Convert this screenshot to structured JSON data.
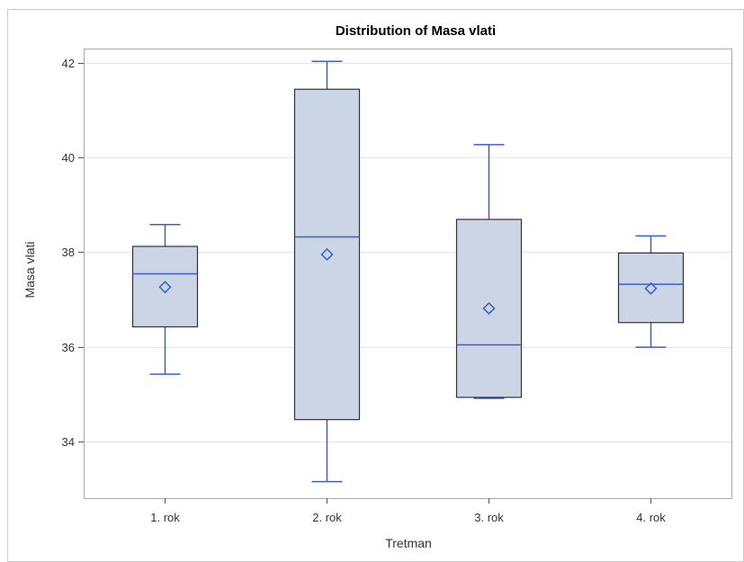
{
  "chart_data": {
    "type": "box",
    "title": "Distribution of Masa vlati",
    "xlabel": "Tretman",
    "ylabel": "Masa vlati",
    "ylim": [
      32.8,
      42.3
    ],
    "yticks": [
      34,
      36,
      38,
      40,
      42
    ],
    "grid": true,
    "categories": [
      "1. rok",
      "2. rok",
      "3. rok",
      "4. rok"
    ],
    "boxes": [
      {
        "category": "1. rok",
        "whisker_low": 35.42,
        "q1": 36.42,
        "median": 37.54,
        "q3": 38.12,
        "whisker_high": 38.58,
        "mean": 37.26
      },
      {
        "category": "2. rok",
        "whisker_low": 33.15,
        "q1": 34.46,
        "median": 38.32,
        "q3": 41.44,
        "whisker_high": 42.03,
        "mean": 37.95
      },
      {
        "category": "3. rok",
        "whisker_low": 34.91,
        "q1": 34.93,
        "median": 36.04,
        "q3": 38.69,
        "whisker_high": 40.27,
        "mean": 36.81
      },
      {
        "category": "4. rok",
        "whisker_low": 35.99,
        "q1": 36.51,
        "median": 37.32,
        "q3": 37.98,
        "whisker_high": 38.34,
        "mean": 37.23
      }
    ],
    "colors": {
      "box_fill": "#cbd5e6",
      "box_edge": "#333333",
      "line": "#3a5fcd",
      "grid": "#e6e6e6",
      "frame": "#aaaaaa",
      "outer_border": "#cccccc"
    }
  }
}
